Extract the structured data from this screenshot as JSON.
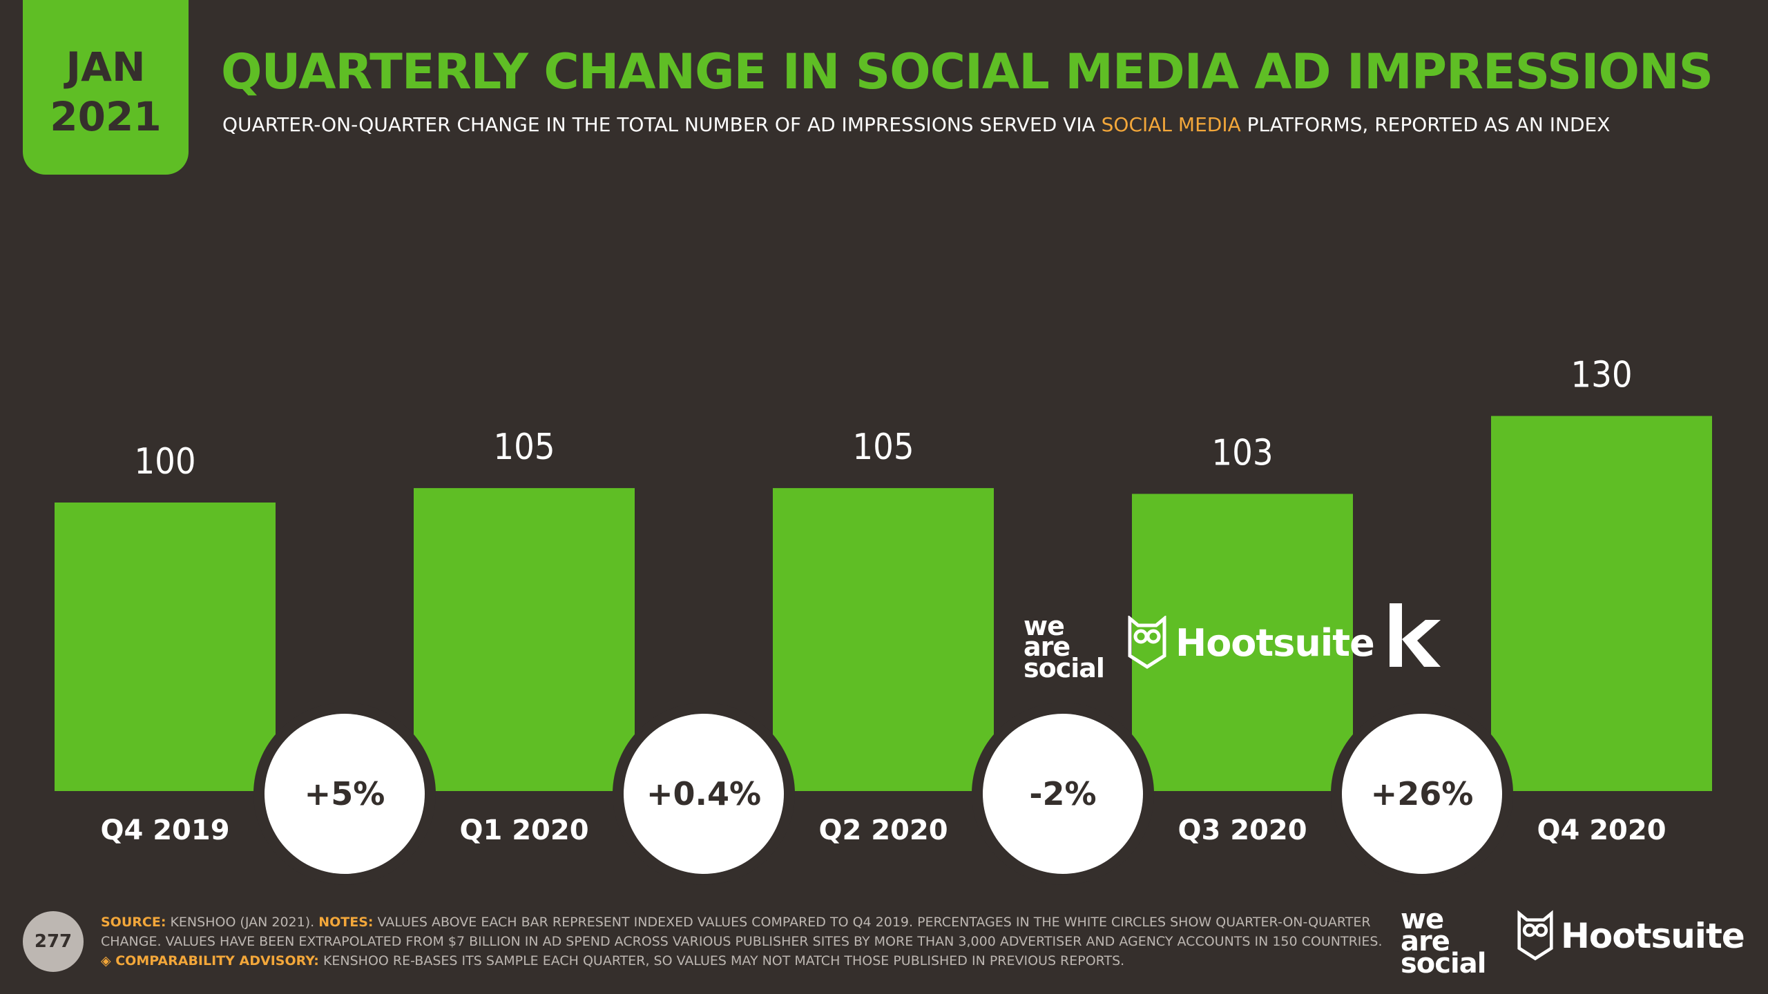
{
  "badge": {
    "month": "JAN",
    "year": "2021"
  },
  "title": "QUARTERLY CHANGE IN SOCIAL MEDIA AD IMPRESSIONS",
  "subtitle": {
    "pre": "QUARTER-ON-QUARTER CHANGE IN THE TOTAL NUMBER OF AD IMPRESSIONS SERVED VIA ",
    "highlight": "SOCIAL MEDIA",
    "post": " PLATFORMS, REPORTED AS AN INDEX"
  },
  "colors": {
    "background": "#352f2c",
    "bar": "#5fbe25",
    "accent": "#f3a73a",
    "circle": "#ffffff"
  },
  "chart_data": {
    "type": "bar",
    "categories": [
      "Q4 2019",
      "Q1 2020",
      "Q2 2020",
      "Q3 2020",
      "Q4 2020"
    ],
    "values": [
      100,
      105,
      105,
      103,
      130
    ],
    "changes": [
      "+5%",
      "+0.4%",
      "-2%",
      "+26%"
    ],
    "title": "QUARTERLY CHANGE IN SOCIAL MEDIA AD IMPRESSIONS",
    "xlabel": "",
    "ylabel": "",
    "ylim": [
      0,
      150
    ],
    "grid": false,
    "legend": "none"
  },
  "partner_logos": {
    "we_are_social": [
      "we",
      "are",
      "social"
    ],
    "hootsuite": "Hootsuite",
    "kenshoo_icon": "k-logo-icon"
  },
  "footer": {
    "source_label": "SOURCE:",
    "source_text": " KENSHOO (JAN 2021). ",
    "notes_label": "NOTES:",
    "notes_text": " VALUES ABOVE EACH BAR REPRESENT INDEXED VALUES COMPARED TO Q4 2019. PERCENTAGES IN THE WHITE CIRCLES SHOW QUARTER-ON-QUARTER CHANGE. VALUES HAVE BEEN EXTRAPOLATED FROM $7 BILLION IN AD SPEND ACROSS VARIOUS PUBLISHER SITES BY MORE THAN 3,000 ADVERTISER AND AGENCY ACCOUNTS IN 150 COUNTRIES. ",
    "advisory_label": "◈ COMPARABILITY ADVISORY:",
    "advisory_text": " KENSHOO RE-BASES ITS SAMPLE EACH QUARTER, SO VALUES MAY NOT MATCH THOSE PUBLISHED IN PREVIOUS REPORTS."
  },
  "page_number": "277",
  "footer_logos": {
    "we_are_social": [
      "we",
      "are",
      "social"
    ],
    "hootsuite": "Hootsuite"
  }
}
